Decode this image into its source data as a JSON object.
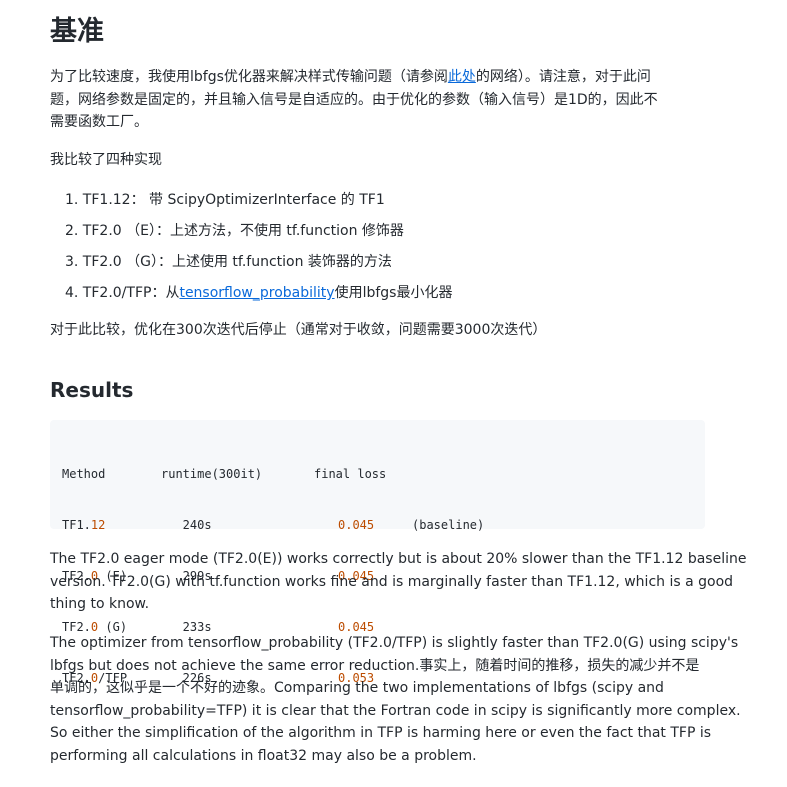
{
  "heading": "基准",
  "intro": {
    "line1_pre": "为了比较速度，我使用lbfgs优化器来解决样式传输问题（请参阅",
    "link_text": "此处",
    "line1_post": "的网络）。请注意，对于此问",
    "line2": "题，网络参数是固定的，并且输入信号是自适应的。由于优化的参数（输入信号）是1D的，因此不",
    "line3": "需要函数工厂。"
  },
  "compare_intro": "我比较了四种实现",
  "implementations": [
    {
      "text": "1. TF1.12： 带 ScipyOptimizerInterface 的 TF1"
    },
    {
      "text": "2. TF2.0 （E）：上述方法，不使用 tf.function 修饰器"
    },
    {
      "text": "3. TF2.0 （G）：上述使用 tf.function 装饰器的方法"
    },
    {
      "text_pre": "4. TF2.0/TFP：从",
      "link_text": "tensorflow_probability",
      "text_post": "使用lbfgs最小化器"
    }
  ],
  "stop_note": "对于此比较，优化在300次迭代后停止（通常对于收敛，问题需要3000次迭代）",
  "results_heading": "Results",
  "results_table": {
    "header": {
      "method": "Method",
      "runtime": "runtime(300it)",
      "loss": "final loss"
    },
    "rows": [
      {
        "method_pre": "TF1.",
        "method_num": "12",
        "method_post": "",
        "runtime": "   240s",
        "loss": "0.045",
        "note": "(baseline)"
      },
      {
        "method_pre": "TF2.",
        "method_num": "0",
        "method_post": " (E)",
        "runtime": "   299s",
        "loss": "0.045",
        "note": ""
      },
      {
        "method_pre": "TF2.",
        "method_num": "0",
        "method_post": " (G)",
        "runtime": "   233s",
        "loss": "0.045",
        "note": ""
      },
      {
        "method_pre": "TF2.",
        "method_num": "0",
        "method_post": "/TFP",
        "runtime": "   226s",
        "loss": "0.053",
        "note": ""
      }
    ]
  },
  "para_eager": {
    "line1": "The TF2.0 eager mode (TF2.0(E)) works correctly but is about 20% slower than the TF1.12 baseline",
    "line2": "version. TF2.0(G) with tf.function works fine and is marginally faster than TF1.12, which is a good",
    "line3": "thing to know."
  },
  "para_tfp": {
    "line1": "The optimizer from tensorflow_probability (TF2.0/TFP) is slightly faster than TF2.0(G) using scipy's",
    "line2": "lbfgs but does not achieve the same error reduction.事实上，随着时间的推移，损失的减少并不是",
    "line3": "单调的，这似乎是一个不好的迹象。Comparing the two implementations of lbfgs (scipy and",
    "line4": "tensorflow_probability=TFP) it is clear that the Fortran code in scipy is significantly more complex.",
    "line5": "So either the simplification of the algorithm in TFP is harming here or even the fact that TFP is",
    "line6": "performing all calculations in float32 may also be a problem."
  },
  "colors": {
    "text": "#24292f",
    "link": "#0969da",
    "code_bg": "#f6f8fa",
    "code_number": "#bc4c00"
  }
}
